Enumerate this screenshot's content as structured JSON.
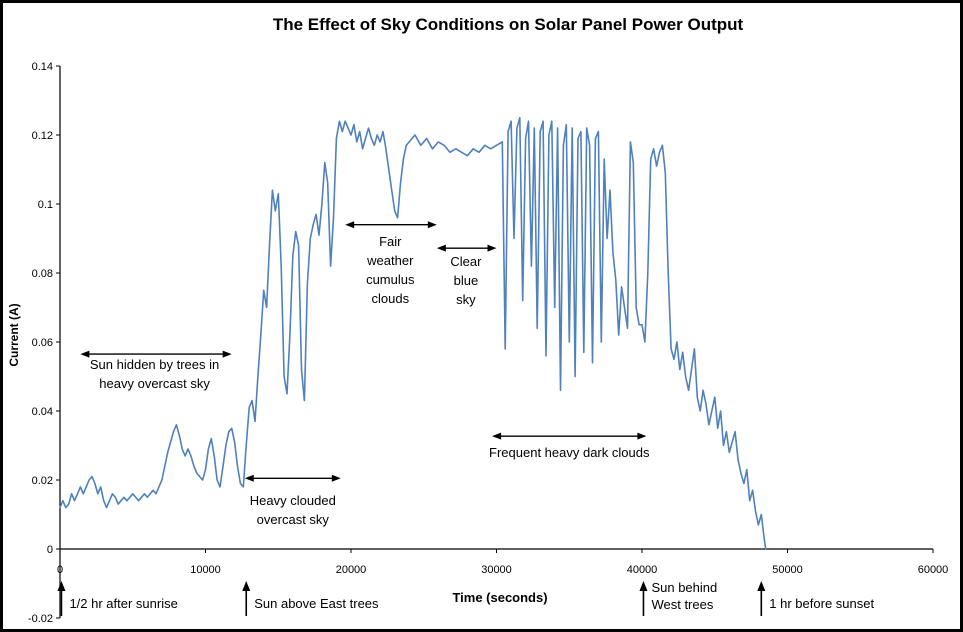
{
  "chart_data": {
    "type": "line",
    "title": "The Effect of Sky Conditions on Solar Panel Power Output",
    "xlabel": "Time (seconds)",
    "ylabel": "Current (A)",
    "xlim": [
      0,
      60000
    ],
    "ylim": [
      -0.02,
      0.14
    ],
    "x_tick_labels": [
      "0",
      "10000",
      "20000",
      "30000",
      "40000",
      "50000",
      "60000"
    ],
    "y_tick_labels": [
      "-0.02",
      "0",
      "0.02",
      "0.04",
      "0.06",
      "0.08",
      "0.1",
      "0.12",
      "0.14"
    ],
    "grid": false,
    "legend": false,
    "line_color": "#4f81bd",
    "axis_color": "#000000",
    "points": [
      [
        0,
        0.012
      ],
      [
        200,
        0.014
      ],
      [
        400,
        0.012
      ],
      [
        600,
        0.013
      ],
      [
        800,
        0.016
      ],
      [
        1000,
        0.014
      ],
      [
        1200,
        0.016
      ],
      [
        1400,
        0.018
      ],
      [
        1600,
        0.016
      ],
      [
        1800,
        0.018
      ],
      [
        2000,
        0.02
      ],
      [
        2200,
        0.021
      ],
      [
        2400,
        0.019
      ],
      [
        2600,
        0.016
      ],
      [
        2800,
        0.018
      ],
      [
        3000,
        0.014
      ],
      [
        3200,
        0.012
      ],
      [
        3400,
        0.014
      ],
      [
        3600,
        0.016
      ],
      [
        3800,
        0.015
      ],
      [
        4000,
        0.013
      ],
      [
        4200,
        0.014
      ],
      [
        4400,
        0.015
      ],
      [
        4600,
        0.014
      ],
      [
        4800,
        0.015
      ],
      [
        5000,
        0.016
      ],
      [
        5200,
        0.015
      ],
      [
        5400,
        0.014
      ],
      [
        5600,
        0.015
      ],
      [
        5800,
        0.016
      ],
      [
        6000,
        0.015
      ],
      [
        6200,
        0.016
      ],
      [
        6400,
        0.017
      ],
      [
        6600,
        0.016
      ],
      [
        6800,
        0.018
      ],
      [
        7000,
        0.02
      ],
      [
        7200,
        0.024
      ],
      [
        7400,
        0.028
      ],
      [
        7600,
        0.031
      ],
      [
        7800,
        0.034
      ],
      [
        8000,
        0.036
      ],
      [
        8200,
        0.033
      ],
      [
        8400,
        0.029
      ],
      [
        8600,
        0.027
      ],
      [
        8800,
        0.029
      ],
      [
        9000,
        0.027
      ],
      [
        9200,
        0.024
      ],
      [
        9400,
        0.022
      ],
      [
        9600,
        0.021
      ],
      [
        9800,
        0.02
      ],
      [
        10000,
        0.023
      ],
      [
        10200,
        0.029
      ],
      [
        10400,
        0.032
      ],
      [
        10600,
        0.027
      ],
      [
        10800,
        0.02
      ],
      [
        11000,
        0.018
      ],
      [
        11200,
        0.024
      ],
      [
        11400,
        0.03
      ],
      [
        11600,
        0.034
      ],
      [
        11800,
        0.035
      ],
      [
        12000,
        0.031
      ],
      [
        12200,
        0.024
      ],
      [
        12400,
        0.019
      ],
      [
        12600,
        0.018
      ],
      [
        12800,
        0.03
      ],
      [
        13000,
        0.041
      ],
      [
        13200,
        0.043
      ],
      [
        13400,
        0.037
      ],
      [
        13600,
        0.05
      ],
      [
        13800,
        0.062
      ],
      [
        14000,
        0.075
      ],
      [
        14200,
        0.07
      ],
      [
        14400,
        0.088
      ],
      [
        14600,
        0.104
      ],
      [
        14800,
        0.098
      ],
      [
        15000,
        0.103
      ],
      [
        15200,
        0.082
      ],
      [
        15400,
        0.05
      ],
      [
        15600,
        0.045
      ],
      [
        15800,
        0.062
      ],
      [
        16000,
        0.085
      ],
      [
        16200,
        0.092
      ],
      [
        16400,
        0.088
      ],
      [
        16600,
        0.052
      ],
      [
        16800,
        0.043
      ],
      [
        17000,
        0.077
      ],
      [
        17200,
        0.09
      ],
      [
        17400,
        0.094
      ],
      [
        17600,
        0.097
      ],
      [
        17800,
        0.091
      ],
      [
        18000,
        0.1
      ],
      [
        18200,
        0.112
      ],
      [
        18400,
        0.106
      ],
      [
        18600,
        0.082
      ],
      [
        18800,
        0.096
      ],
      [
        19000,
        0.119
      ],
      [
        19200,
        0.124
      ],
      [
        19400,
        0.121
      ],
      [
        19600,
        0.124
      ],
      [
        19800,
        0.122
      ],
      [
        20000,
        0.12
      ],
      [
        20200,
        0.123
      ],
      [
        20400,
        0.118
      ],
      [
        20600,
        0.121
      ],
      [
        20800,
        0.116
      ],
      [
        21000,
        0.119
      ],
      [
        21200,
        0.122
      ],
      [
        21400,
        0.119
      ],
      [
        21600,
        0.117
      ],
      [
        21800,
        0.12
      ],
      [
        22000,
        0.118
      ],
      [
        22200,
        0.121
      ],
      [
        22400,
        0.116
      ],
      [
        22600,
        0.11
      ],
      [
        22800,
        0.104
      ],
      [
        23000,
        0.098
      ],
      [
        23200,
        0.096
      ],
      [
        23400,
        0.106
      ],
      [
        23600,
        0.113
      ],
      [
        23800,
        0.117
      ],
      [
        24000,
        0.118
      ],
      [
        24400,
        0.12
      ],
      [
        24800,
        0.117
      ],
      [
        25200,
        0.119
      ],
      [
        25600,
        0.116
      ],
      [
        26000,
        0.118
      ],
      [
        26400,
        0.117
      ],
      [
        26800,
        0.115
      ],
      [
        27200,
        0.116
      ],
      [
        27600,
        0.115
      ],
      [
        28000,
        0.114
      ],
      [
        28400,
        0.116
      ],
      [
        28800,
        0.115
      ],
      [
        29200,
        0.117
      ],
      [
        29600,
        0.116
      ],
      [
        30000,
        0.117
      ],
      [
        30400,
        0.118
      ],
      [
        30600,
        0.058
      ],
      [
        30800,
        0.121
      ],
      [
        31000,
        0.124
      ],
      [
        31200,
        0.09
      ],
      [
        31400,
        0.122
      ],
      [
        31600,
        0.125
      ],
      [
        31800,
        0.072
      ],
      [
        32000,
        0.119
      ],
      [
        32200,
        0.124
      ],
      [
        32400,
        0.082
      ],
      [
        32600,
        0.122
      ],
      [
        32800,
        0.064
      ],
      [
        33000,
        0.121
      ],
      [
        33200,
        0.124
      ],
      [
        33400,
        0.056
      ],
      [
        33600,
        0.12
      ],
      [
        33800,
        0.124
      ],
      [
        34000,
        0.07
      ],
      [
        34200,
        0.122
      ],
      [
        34400,
        0.046
      ],
      [
        34600,
        0.117
      ],
      [
        34800,
        0.123
      ],
      [
        35000,
        0.06
      ],
      [
        35200,
        0.122
      ],
      [
        35400,
        0.05
      ],
      [
        35600,
        0.119
      ],
      [
        35800,
        0.121
      ],
      [
        36000,
        0.057
      ],
      [
        36200,
        0.122
      ],
      [
        36400,
        0.117
      ],
      [
        36600,
        0.054
      ],
      [
        36800,
        0.119
      ],
      [
        37000,
        0.121
      ],
      [
        37200,
        0.06
      ],
      [
        37400,
        0.113
      ],
      [
        37600,
        0.09
      ],
      [
        37800,
        0.104
      ],
      [
        38000,
        0.086
      ],
      [
        38200,
        0.078
      ],
      [
        38400,
        0.062
      ],
      [
        38600,
        0.076
      ],
      [
        38800,
        0.07
      ],
      [
        39000,
        0.064
      ],
      [
        39200,
        0.118
      ],
      [
        39400,
        0.112
      ],
      [
        39600,
        0.07
      ],
      [
        39800,
        0.065
      ],
      [
        40000,
        0.065
      ],
      [
        40200,
        0.06
      ],
      [
        40400,
        0.08
      ],
      [
        40600,
        0.113
      ],
      [
        40800,
        0.116
      ],
      [
        41000,
        0.111
      ],
      [
        41200,
        0.115
      ],
      [
        41400,
        0.117
      ],
      [
        41600,
        0.109
      ],
      [
        41800,
        0.08
      ],
      [
        42000,
        0.058
      ],
      [
        42200,
        0.055
      ],
      [
        42400,
        0.06
      ],
      [
        42600,
        0.052
      ],
      [
        42800,
        0.057
      ],
      [
        43000,
        0.05
      ],
      [
        43200,
        0.046
      ],
      [
        43400,
        0.052
      ],
      [
        43600,
        0.058
      ],
      [
        43800,
        0.044
      ],
      [
        44000,
        0.04
      ],
      [
        44200,
        0.046
      ],
      [
        44400,
        0.042
      ],
      [
        44600,
        0.036
      ],
      [
        44800,
        0.04
      ],
      [
        45000,
        0.044
      ],
      [
        45200,
        0.035
      ],
      [
        45400,
        0.04
      ],
      [
        45600,
        0.03
      ],
      [
        45800,
        0.034
      ],
      [
        46000,
        0.028
      ],
      [
        46200,
        0.031
      ],
      [
        46400,
        0.034
      ],
      [
        46600,
        0.026
      ],
      [
        46800,
        0.022
      ],
      [
        47000,
        0.019
      ],
      [
        47200,
        0.023
      ],
      [
        47400,
        0.014
      ],
      [
        47600,
        0.017
      ],
      [
        47800,
        0.011
      ],
      [
        48000,
        0.007
      ],
      [
        48200,
        0.01
      ],
      [
        48400,
        0.003
      ],
      [
        48500,
        0
      ]
    ],
    "annotations": {
      "ranges": [
        {
          "id": "sun-hidden-by-trees",
          "x1": 1400,
          "x2": 11800,
          "y": 0.0565,
          "label_x": 6500,
          "label_y": 0.054,
          "lines": [
            "Sun hidden by trees in",
            "heavy overcast sky"
          ]
        },
        {
          "id": "heavy-clouded-overcast-sky",
          "x1": 12700,
          "x2": 19300,
          "y": 0.0205,
          "label_x": 16000,
          "label_y": 0.0145,
          "lines": [
            "Heavy clouded",
            "overcast sky"
          ]
        },
        {
          "id": "fair-weather-cumulus-clouds",
          "x1": 19600,
          "x2": 25900,
          "y": 0.094,
          "label_x": 22700,
          "label_y": 0.0895,
          "lines": [
            "Fair",
            "weather",
            "cumulus",
            "clouds"
          ]
        },
        {
          "id": "clear-blue-sky",
          "x1": 25900,
          "x2": 30000,
          "y": 0.0872,
          "label_x": 27900,
          "label_y": 0.0839,
          "lines": [
            "Clear",
            "blue",
            "sky"
          ]
        },
        {
          "id": "frequent-heavy-dark-clouds",
          "x1": 29700,
          "x2": 40300,
          "y": 0.0327,
          "label_x": 35000,
          "label_y": 0.0283,
          "lines": [
            "Frequent heavy dark clouds"
          ]
        }
      ],
      "events": [
        {
          "id": "half-hr-after-sunrise",
          "x": 100,
          "lines": [
            "1/2 hr after sunrise"
          ]
        },
        {
          "id": "sun-above-east-trees",
          "x": 12800,
          "lines": [
            "Sun above East trees"
          ]
        },
        {
          "id": "sun-behind-west-trees",
          "x": 40100,
          "lines": [
            "Sun behind",
            "West trees"
          ]
        },
        {
          "id": "one-hr-before-sunset",
          "x": 48200,
          "lines": [
            "1 hr before sunset"
          ]
        }
      ]
    }
  }
}
